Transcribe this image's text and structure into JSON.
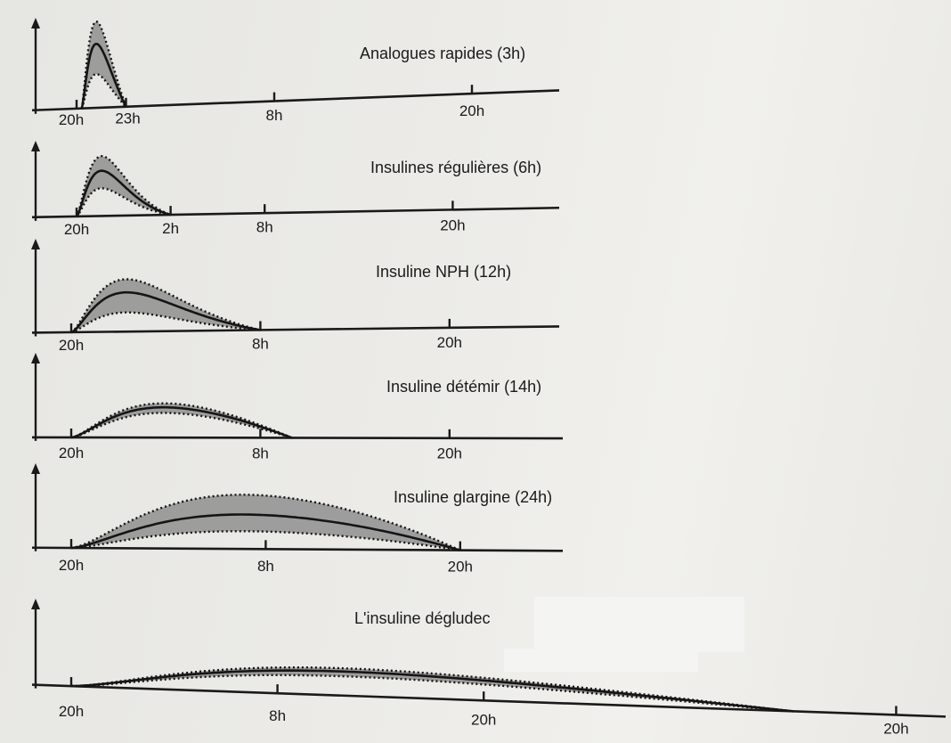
{
  "chart_data": {
    "type": "area",
    "description_units": "time of day",
    "panels": [
      {
        "title": "Analogues rapides (3h)",
        "ticks": [
          {
            "t": 0,
            "label": "20h"
          },
          {
            "t": 3,
            "label": "23h"
          },
          {
            "t": 12,
            "label": "8h"
          },
          {
            "t": 24,
            "label": "20h"
          }
        ],
        "action_start_h": 0.3,
        "action_end_h": 3,
        "peak_h": 1.2,
        "relative_peak": {
          "mean": 0.72,
          "upper": 0.97,
          "lower": 0.38
        }
      },
      {
        "title": "Insulines régulières (6h)",
        "ticks": [
          {
            "t": 0,
            "label": "20h"
          },
          {
            "t": 6,
            "label": "2h"
          },
          {
            "t": 12,
            "label": "8h"
          },
          {
            "t": 24,
            "label": "20h"
          }
        ],
        "action_start_h": 0,
        "action_end_h": 6,
        "peak_h": 1.6,
        "relative_peak": {
          "mean": 0.62,
          "upper": 0.82,
          "lower": 0.38
        }
      },
      {
        "title": "Insuline NPH (12h)",
        "ticks": [
          {
            "t": 0,
            "label": "20h"
          },
          {
            "t": 12,
            "label": "8h"
          },
          {
            "t": 24,
            "label": "20h"
          }
        ],
        "action_start_h": 0,
        "action_end_h": 12,
        "peak_h": 3.5,
        "relative_peak": {
          "mean": 0.45,
          "upper": 0.6,
          "lower": 0.22
        }
      },
      {
        "title": "Insuline détémir (14h)",
        "ticks": [
          {
            "t": 0,
            "label": "20h"
          },
          {
            "t": 12,
            "label": "8h"
          },
          {
            "t": 24,
            "label": "20h"
          }
        ],
        "action_start_h": 0,
        "action_end_h": 14,
        "peak_h": 6,
        "relative_peak": {
          "mean": 0.38,
          "upper": 0.43,
          "lower": 0.31
        }
      },
      {
        "title": "Insuline glargine (24h)",
        "ticks": [
          {
            "t": 0,
            "label": "20h"
          },
          {
            "t": 12,
            "label": "8h"
          },
          {
            "t": 24,
            "label": "20h"
          }
        ],
        "action_start_h": 0,
        "action_end_h": 24,
        "peak_h": 11,
        "relative_peak": {
          "mean": 0.33,
          "upper": 0.52,
          "lower": 0.17
        }
      },
      {
        "title": "L'insuline dégludec",
        "ticks": [
          {
            "t": 0,
            "label": "20h"
          },
          {
            "t": 12,
            "label": "8h"
          },
          {
            "t": 24,
            "label": "20h"
          },
          {
            "t": 48,
            "label": "20h"
          }
        ],
        "action_start_h": 0,
        "action_end_h": 42,
        "peak_h": 16,
        "relative_peak": {
          "mean": 0.3,
          "upper": 0.34,
          "lower": 0.24
        }
      }
    ]
  }
}
